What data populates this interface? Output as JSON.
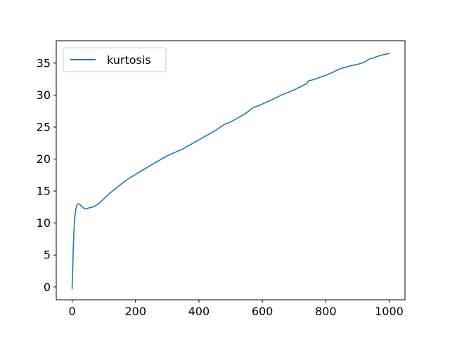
{
  "chart_data": {
    "type": "line",
    "title": "",
    "xlabel": "",
    "ylabel": "",
    "xlim": [
      -50,
      1050
    ],
    "ylim": [
      -2,
      38.5
    ],
    "xticks": [
      0,
      200,
      400,
      600,
      800,
      1000
    ],
    "yticks": [
      0,
      5,
      10,
      15,
      20,
      25,
      30,
      35
    ],
    "grid": false,
    "legend": {
      "position": "upper-left"
    },
    "series": [
      {
        "name": "kurtosis",
        "color": "#1f77b4",
        "x": [
          0,
          2,
          4,
          6,
          8,
          10,
          12,
          15,
          18,
          20,
          25,
          30,
          35,
          40,
          45,
          50,
          55,
          60,
          65,
          70,
          80,
          90,
          100,
          120,
          140,
          160,
          180,
          200,
          250,
          300,
          350,
          400,
          450,
          480,
          500,
          540,
          560,
          570,
          600,
          640,
          660,
          700,
          720,
          740,
          745,
          760,
          800,
          820,
          840,
          850,
          880,
          900,
          920,
          930,
          940,
          950,
          960,
          980,
          1000
        ],
        "y": [
          -0.3,
          3.0,
          6.5,
          9.0,
          10.5,
          11.5,
          12.2,
          12.8,
          13.0,
          13.0,
          12.9,
          12.6,
          12.4,
          12.25,
          12.2,
          12.3,
          12.4,
          12.45,
          12.5,
          12.6,
          12.9,
          13.3,
          13.8,
          14.7,
          15.5,
          16.3,
          17.0,
          17.6,
          19.1,
          20.5,
          21.6,
          23.0,
          24.4,
          25.4,
          25.8,
          26.9,
          27.6,
          28.0,
          28.6,
          29.5,
          30.0,
          30.8,
          31.3,
          31.8,
          32.2,
          32.4,
          33.1,
          33.5,
          34.0,
          34.2,
          34.6,
          34.8,
          35.1,
          35.4,
          35.7,
          35.8,
          36.0,
          36.3,
          36.5
        ]
      }
    ]
  }
}
